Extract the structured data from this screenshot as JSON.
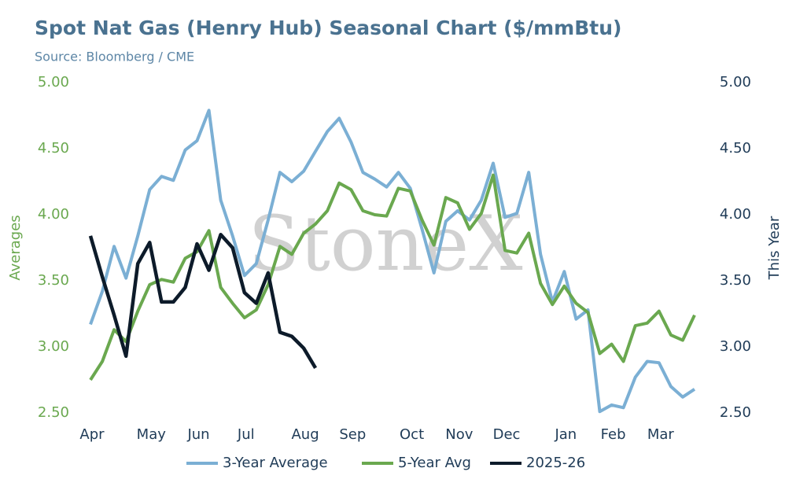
{
  "chart_data": {
    "type": "line",
    "title": "Spot Nat Gas (Henry Hub) Seasonal Chart ($/mmBtu)",
    "subtitle": "Source: Bloomberg / CME",
    "watermark": "StoneX",
    "y_label": "Averages",
    "y2_label": "This Year",
    "grid": false,
    "legend": "bottom",
    "categories": [
      "Apr",
      null,
      null,
      null,
      null,
      "May",
      null,
      null,
      null,
      "Jun",
      null,
      null,
      null,
      "Jul",
      null,
      null,
      null,
      null,
      "Aug",
      null,
      null,
      null,
      "Sep",
      null,
      null,
      null,
      null,
      "Oct",
      null,
      null,
      null,
      "Nov",
      null,
      null,
      null,
      "Dec",
      null,
      null,
      null,
      null,
      "Jan",
      null,
      null,
      null,
      "Feb",
      null,
      null,
      null,
      "Mar",
      null,
      null,
      null
    ],
    "ylim": [
      2.5,
      5
    ],
    "yticks": [
      {
        "value": 2.5,
        "label": "2.50"
      },
      {
        "value": 3,
        "label": "3.00"
      },
      {
        "value": 3.5,
        "label": "3.50"
      },
      {
        "value": 4,
        "label": "4.00"
      },
      {
        "value": 4.5,
        "label": "4.50"
      },
      {
        "value": 5,
        "label": "5.00"
      }
    ],
    "y2lim": [
      2.5,
      5
    ],
    "y2ticks": [
      {
        "value": 2.5,
        "label": "2.50"
      },
      {
        "value": 3,
        "label": "3.00"
      },
      {
        "value": 3.5,
        "label": "3.50"
      },
      {
        "value": 4,
        "label": "4.00"
      },
      {
        "value": 4.5,
        "label": "4.50"
      },
      {
        "value": 5,
        "label": "5.00"
      }
    ],
    "series": [
      {
        "name": "3-Year Average",
        "color": "#7bafd4",
        "values": [
          3.17,
          3.42,
          3.76,
          3.52,
          3.84,
          4.19,
          4.29,
          4.26,
          4.49,
          4.56,
          4.79,
          4.11,
          3.84,
          3.54,
          3.63,
          3.96,
          4.32,
          4.25,
          4.33,
          4.48,
          4.63,
          4.73,
          4.55,
          4.32,
          4.27,
          4.21,
          4.32,
          4.2,
          3.89,
          3.56,
          3.95,
          4.03,
          3.96,
          4.11,
          4.39,
          3.98,
          4.01,
          4.32,
          3.7,
          3.34,
          3.57,
          3.21,
          3.28,
          2.51,
          2.56,
          2.54,
          2.77,
          2.89,
          2.88,
          2.7,
          2.62,
          2.68
        ]
      },
      {
        "name": "5-Year Avg",
        "color": "#6aa84f",
        "values": [
          2.75,
          2.89,
          3.13,
          3.04,
          3.27,
          3.47,
          3.51,
          3.49,
          3.67,
          3.72,
          3.88,
          3.45,
          3.33,
          3.22,
          3.28,
          3.47,
          3.76,
          3.7,
          3.86,
          3.93,
          4.03,
          4.24,
          4.19,
          4.03,
          4.0,
          3.99,
          4.2,
          4.18,
          3.96,
          3.77,
          4.13,
          4.09,
          3.89,
          4.01,
          4.3,
          3.73,
          3.71,
          3.86,
          3.48,
          3.32,
          3.46,
          3.33,
          3.26,
          2.95,
          3.02,
          2.89,
          3.16,
          3.18,
          3.27,
          3.09,
          3.05,
          3.24
        ]
      },
      {
        "name": "2025-26",
        "color": "#0d1b2a",
        "axis": "y2",
        "values": [
          3.84,
          3.53,
          3.24,
          2.93,
          3.63,
          3.79,
          3.34,
          3.34,
          3.45,
          3.78,
          3.58,
          3.85,
          3.75,
          3.41,
          3.33,
          3.56,
          3.11,
          3.08,
          2.99,
          2.84,
          null,
          null,
          null,
          null,
          null,
          null,
          null,
          null,
          null,
          null,
          null,
          null,
          null,
          null,
          null,
          null,
          null,
          null,
          null,
          null,
          null,
          null,
          null,
          null,
          null,
          null,
          null,
          null,
          null,
          null,
          null,
          null
        ]
      }
    ]
  }
}
